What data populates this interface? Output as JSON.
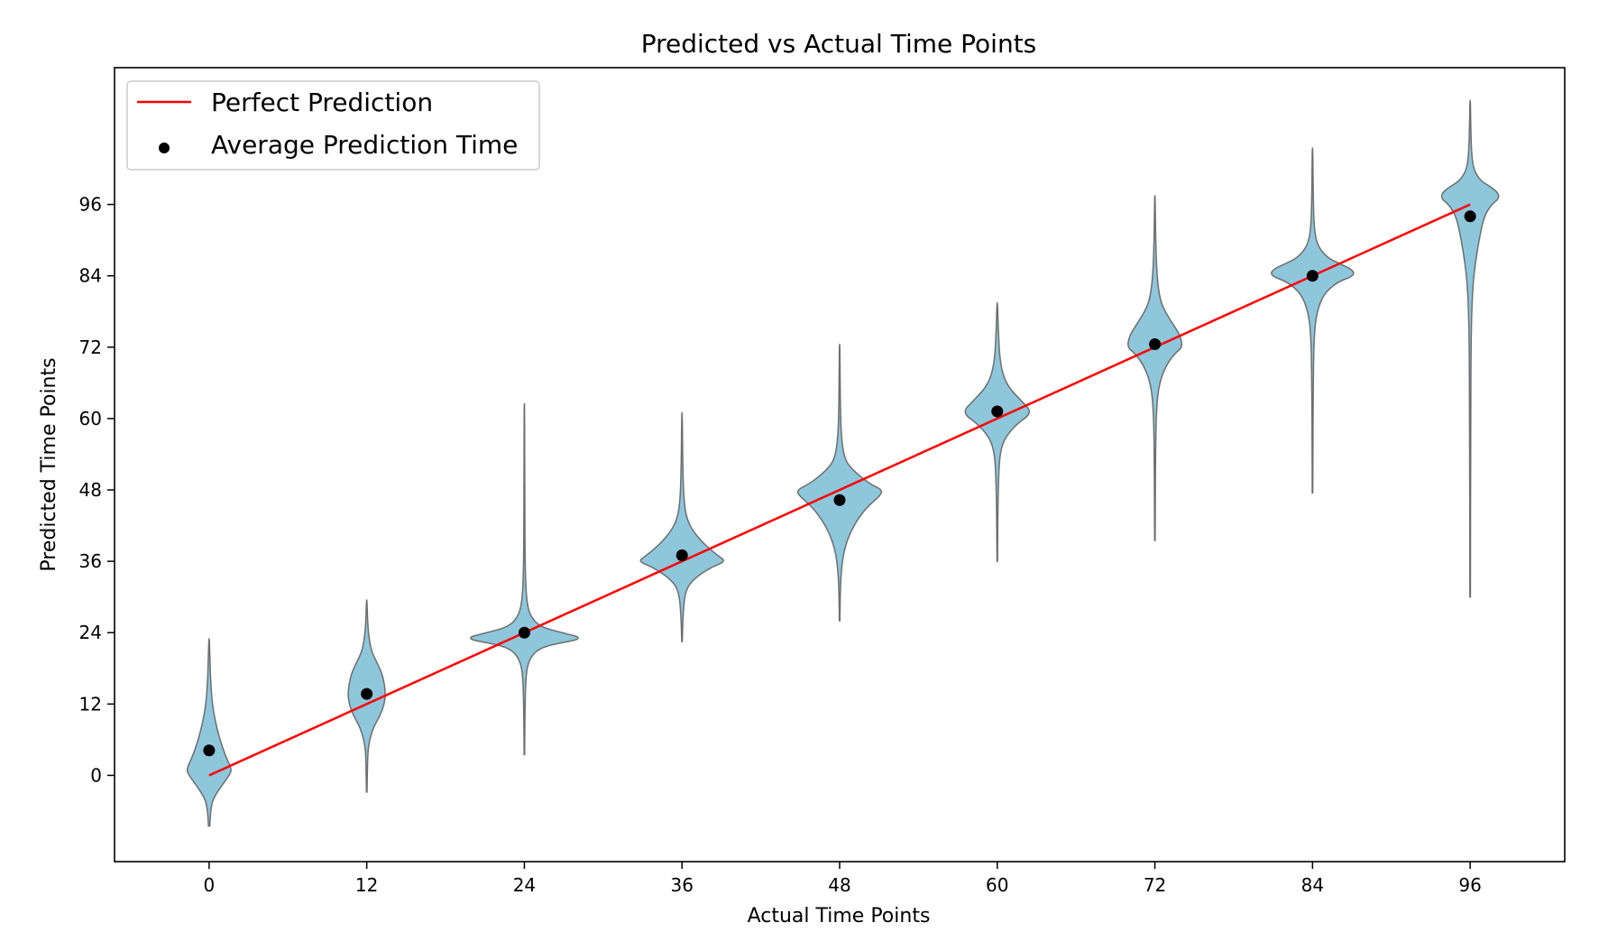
{
  "chart_data": {
    "type": "violin",
    "title": "Predicted vs Actual Time Points",
    "xlabel": "Actual Time Points",
    "ylabel": "Predicted Time Points",
    "xlim": [
      -7.2,
      103.2
    ],
    "ylim": [
      -14.5,
      119
    ],
    "xticks": [
      0,
      12,
      24,
      36,
      48,
      60,
      72,
      84,
      96
    ],
    "yticks": [
      0,
      12,
      24,
      36,
      48,
      60,
      72,
      84,
      96
    ],
    "grid": false,
    "legend_position": "top-left",
    "colors": {
      "violin_fill": "#8ec6dc",
      "violin_edge": "#6e6e6e",
      "perfect_line": "#ff0000",
      "mean_marker": "#000000"
    },
    "perfect_prediction": {
      "name": "Perfect Prediction",
      "x": [
        0,
        96
      ],
      "y": [
        0,
        96
      ]
    },
    "average_prediction": {
      "name": "Average Prediction Time",
      "x": [
        0,
        12,
        24,
        36,
        48,
        60,
        72,
        84,
        96
      ],
      "y": [
        4.2,
        13.7,
        24.0,
        37.0,
        46.3,
        61.2,
        72.5,
        84.0,
        94.0
      ]
    },
    "violins": [
      {
        "x": 0,
        "ymin": -8.5,
        "ymax": 23,
        "profile": [
          [
            -8.5,
            0.05
          ],
          [
            -6,
            0.12
          ],
          [
            -4,
            0.3
          ],
          [
            -2,
            0.9
          ],
          [
            0,
            1.6
          ],
          [
            1,
            1.8
          ],
          [
            3,
            1.35
          ],
          [
            6,
            0.85
          ],
          [
            9,
            0.5
          ],
          [
            12,
            0.25
          ],
          [
            16,
            0.12
          ],
          [
            19,
            0.07
          ],
          [
            23,
            0.02
          ]
        ]
      },
      {
        "x": 12,
        "ymin": -2.8,
        "ymax": 29.5,
        "profile": [
          [
            -2.8,
            0.02
          ],
          [
            2,
            0.06
          ],
          [
            5,
            0.12
          ],
          [
            8,
            0.5
          ],
          [
            10,
            1.05
          ],
          [
            12,
            1.4
          ],
          [
            14,
            1.5
          ],
          [
            17,
            1.25
          ],
          [
            19,
            0.8
          ],
          [
            21,
            0.35
          ],
          [
            24,
            0.12
          ],
          [
            27,
            0.05
          ],
          [
            29.5,
            0.02
          ]
        ]
      },
      {
        "x": 24,
        "ymin": 3.5,
        "ymax": 62.5,
        "profile": [
          [
            3.5,
            0.02
          ],
          [
            10,
            0.04
          ],
          [
            16,
            0.1
          ],
          [
            19,
            0.28
          ],
          [
            21,
            0.9
          ],
          [
            22,
            2.1
          ],
          [
            23,
            4.8
          ],
          [
            24,
            3.0
          ],
          [
            25,
            1.2
          ],
          [
            27,
            0.4
          ],
          [
            30,
            0.15
          ],
          [
            35,
            0.06
          ],
          [
            45,
            0.03
          ],
          [
            62.5,
            0.02
          ]
        ]
      },
      {
        "x": 36,
        "ymin": 22.5,
        "ymax": 61,
        "profile": [
          [
            22.5,
            0.02
          ],
          [
            27,
            0.08
          ],
          [
            31,
            0.25
          ],
          [
            33,
            0.9
          ],
          [
            35,
            2.3
          ],
          [
            36,
            3.5
          ],
          [
            37,
            2.8
          ],
          [
            39,
            1.7
          ],
          [
            41,
            0.9
          ],
          [
            43,
            0.4
          ],
          [
            46,
            0.15
          ],
          [
            52,
            0.06
          ],
          [
            61,
            0.02
          ]
        ]
      },
      {
        "x": 48,
        "ymin": 26,
        "ymax": 72.5,
        "profile": [
          [
            26,
            0.02
          ],
          [
            32,
            0.06
          ],
          [
            36,
            0.2
          ],
          [
            39,
            0.5
          ],
          [
            42,
            1.1
          ],
          [
            45,
            2.1
          ],
          [
            47,
            3.2
          ],
          [
            48,
            3.4
          ],
          [
            49,
            2.4
          ],
          [
            51,
            1.2
          ],
          [
            53,
            0.4
          ],
          [
            57,
            0.12
          ],
          [
            63,
            0.05
          ],
          [
            72.5,
            0.02
          ]
        ]
      },
      {
        "x": 60,
        "ymin": 36,
        "ymax": 79.5,
        "profile": [
          [
            36,
            0.02
          ],
          [
            45,
            0.05
          ],
          [
            52,
            0.13
          ],
          [
            55,
            0.3
          ],
          [
            57,
            0.7
          ],
          [
            59,
            1.5
          ],
          [
            61,
            2.8
          ],
          [
            63,
            1.9
          ],
          [
            65,
            1.0
          ],
          [
            67,
            0.5
          ],
          [
            70,
            0.2
          ],
          [
            75,
            0.08
          ],
          [
            79.5,
            0.02
          ]
        ]
      },
      {
        "x": 72,
        "ymin": 39.5,
        "ymax": 97.5,
        "profile": [
          [
            39.5,
            0.02
          ],
          [
            55,
            0.05
          ],
          [
            62,
            0.13
          ],
          [
            66,
            0.35
          ],
          [
            69,
            0.9
          ],
          [
            71,
            1.6
          ],
          [
            72,
            2.2
          ],
          [
            74,
            2.0
          ],
          [
            76,
            1.4
          ],
          [
            78,
            0.8
          ],
          [
            80,
            0.4
          ],
          [
            84,
            0.16
          ],
          [
            90,
            0.06
          ],
          [
            97.5,
            0.02
          ]
        ]
      },
      {
        "x": 84,
        "ymin": 47.5,
        "ymax": 105.5,
        "profile": [
          [
            47.5,
            0.02
          ],
          [
            65,
            0.05
          ],
          [
            74,
            0.12
          ],
          [
            78,
            0.35
          ],
          [
            81,
            0.9
          ],
          [
            83,
            2.0
          ],
          [
            84,
            3.3
          ],
          [
            85,
            3.2
          ],
          [
            86,
            2.2
          ],
          [
            87,
            1.2
          ],
          [
            89,
            0.4
          ],
          [
            92,
            0.12
          ],
          [
            98,
            0.05
          ],
          [
            105.5,
            0.02
          ]
        ]
      },
      {
        "x": 96,
        "ymin": 30,
        "ymax": 113.5,
        "profile": [
          [
            30,
            0.02
          ],
          [
            60,
            0.04
          ],
          [
            75,
            0.08
          ],
          [
            82,
            0.2
          ],
          [
            86,
            0.4
          ],
          [
            90,
            0.7
          ],
          [
            94,
            1.1
          ],
          [
            96,
            1.7
          ],
          [
            97,
            2.3
          ],
          [
            98,
            2.2
          ],
          [
            99,
            1.6
          ],
          [
            100,
            0.8
          ],
          [
            102,
            0.25
          ],
          [
            105,
            0.1
          ],
          [
            110,
            0.04
          ],
          [
            113.5,
            0.02
          ]
        ]
      }
    ]
  }
}
